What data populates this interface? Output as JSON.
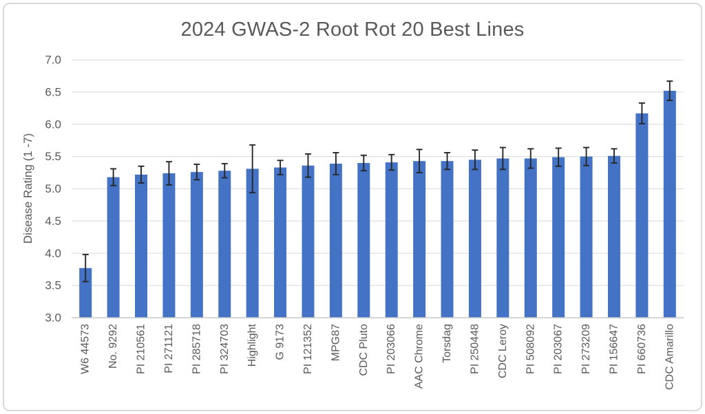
{
  "chart_data": {
    "type": "bar",
    "title": "2024 GWAS-2 Root Rot 20 Best Lines",
    "xlabel": "",
    "ylabel": "Disease Rating (1 -7)",
    "ylim": [
      3.0,
      7.0
    ],
    "ytick_step": 0.5,
    "ytick_labels": [
      "3.0",
      "3.5",
      "4.0",
      "4.5",
      "5.0",
      "5.5",
      "6.0",
      "6.5",
      "7.0"
    ],
    "grid": true,
    "legend": "none",
    "categories": [
      "W6 44573",
      "No. 9292",
      "PI 210561",
      "PI 271121",
      "PI 285718",
      "PI 324703",
      "Highlight",
      "G 9173",
      "PI 121352",
      "MPG87",
      "CDC Pluto",
      "PI 203066",
      "AAC Chrome",
      "Torsdag",
      "PI 250448",
      "CDC Leroy",
      "PI 508092",
      "PI 203067",
      "PI 273209",
      "PI 156647",
      "PI 660736",
      "CDC Amarillo"
    ],
    "values": [
      3.77,
      5.18,
      5.22,
      5.24,
      5.26,
      5.28,
      5.31,
      5.33,
      5.36,
      5.39,
      5.4,
      5.41,
      5.43,
      5.43,
      5.45,
      5.47,
      5.47,
      5.49,
      5.5,
      5.51,
      6.17,
      6.52
    ],
    "errors": [
      0.21,
      0.13,
      0.13,
      0.18,
      0.12,
      0.11,
      0.37,
      0.11,
      0.18,
      0.17,
      0.12,
      0.12,
      0.18,
      0.13,
      0.15,
      0.17,
      0.15,
      0.14,
      0.14,
      0.11,
      0.16,
      0.15
    ],
    "colors": {
      "bar": "#4472C4",
      "error_bar": "#262626",
      "gridline": "#dfdfdf",
      "axis_line": "#c9c9c9",
      "text": "#595959",
      "frame_border": "#d9d9d9",
      "background": "#ffffff"
    }
  }
}
